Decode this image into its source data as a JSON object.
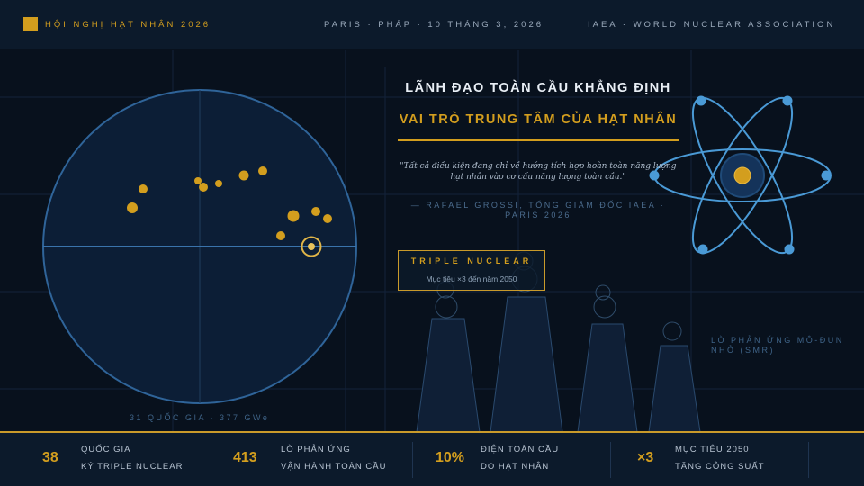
{
  "header": {
    "title": "HỘI NGHỊ HẠT NHÂN 2026",
    "location_date": "PARIS · PHÁP · 10 THÁNG 3, 2026",
    "organizers": "IAEA · WORLD NUCLEAR ASSOCIATION"
  },
  "headline": {
    "line1": "LÃNH ĐẠO TOÀN CẦU KHẲNG ĐỊNH",
    "line2": "VAI TRÒ TRUNG TÂM CỦA HẠT NHÂN"
  },
  "quote": {
    "text": "\"Tất cả điều kiện đang chỉ về hướng tích hợp hoàn toàn năng lượng hạt nhân vào cơ cấu năng lượng toàn cầu.\"",
    "attribution": "— RAFAEL GROSSI, TỔNG GIÁM ĐỐC IAEA · PARIS 2026"
  },
  "badge": {
    "title": "TRIPLE NUCLEAR",
    "subtitle": "Mục tiêu ×3 đến năm 2050"
  },
  "globe": {
    "caption": "31 QUỐC GIA · 377 GWe"
  },
  "smr_label": "LÒ PHẢN ỨNG MÔ-ĐUN NHỎ (SMR)",
  "stats": [
    {
      "value": "38",
      "line1": "QUỐC GIA",
      "line2": "KÝ TRIPLE NUCLEAR"
    },
    {
      "value": "413",
      "line1": "LÒ PHẢN ỨNG",
      "line2": "VẬN HÀNH TOÀN CẦU"
    },
    {
      "value": "10%",
      "line1": "ĐIỆN TOÀN CẦU",
      "line2": "DO HẠT NHÂN"
    },
    {
      "value": "×3",
      "line1": "MỤC TIÊU 2050",
      "line2": "TĂNG CÔNG SUẤT"
    }
  ],
  "colors": {
    "accent": "#d39e1e",
    "background": "#08111d",
    "panel": "#0c1a2b",
    "line": "#2f5f8f",
    "atom": "#4a9ad6"
  }
}
